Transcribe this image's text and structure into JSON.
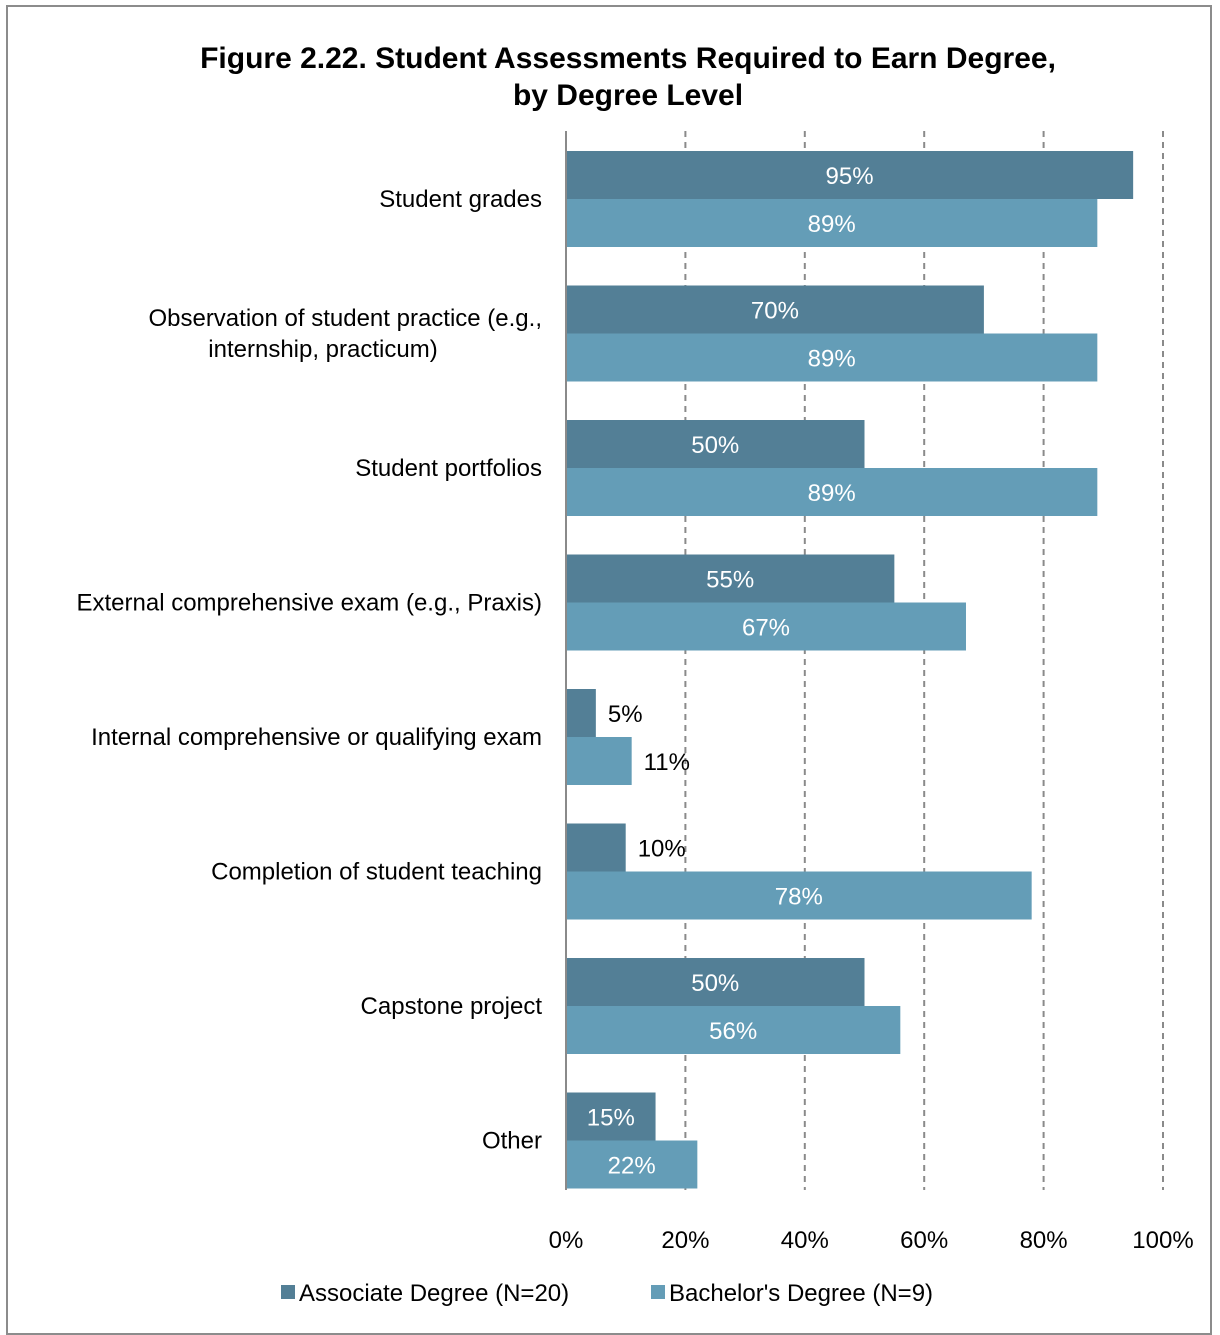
{
  "chart_data": {
    "type": "bar",
    "orientation": "horizontal",
    "title_lines": [
      "Figure 2.22. Student Assessments Required to Earn Degree,",
      "by Degree Level"
    ],
    "categories": [
      "Student grades",
      "Observation of student practice (e.g., internship, practicum)",
      "Student portfolios",
      "External comprehensive exam (e.g., Praxis)",
      "Internal comprehensive or qualifying exam",
      "Completion of student teaching",
      "Capstone project",
      "Other"
    ],
    "category_display": [
      [
        "Student grades"
      ],
      [
        "Observation of student practice (e.g.,",
        "internship, practicum)"
      ],
      [
        "Student portfolios"
      ],
      [
        "External comprehensive exam (e.g., Praxis)"
      ],
      [
        "Internal comprehensive or qualifying exam"
      ],
      [
        "Completion of student teaching"
      ],
      [
        "Capstone project"
      ],
      [
        "Other"
      ]
    ],
    "series": [
      {
        "name": "Associate Degree (N=20)",
        "color": "#537f96",
        "values": [
          95,
          70,
          50,
          55,
          5,
          10,
          50,
          15
        ],
        "labels": [
          "95%",
          "70%",
          "50%",
          "55%",
          "5%",
          "10%",
          "50%",
          "15%"
        ]
      },
      {
        "name": "Bachelor's Degree (N=9)",
        "color": "#649db7",
        "values": [
          89,
          89,
          89,
          67,
          11,
          78,
          56,
          22
        ],
        "labels": [
          "89%",
          "89%",
          "89%",
          "67%",
          "11%",
          "78%",
          "56%",
          "22%"
        ]
      }
    ],
    "xlim": [
      0,
      100
    ],
    "xticks": [
      "0%",
      "20%",
      "40%",
      "60%",
      "80%",
      "100%"
    ],
    "grid": "vertical dashed",
    "legend_position": "bottom"
  }
}
